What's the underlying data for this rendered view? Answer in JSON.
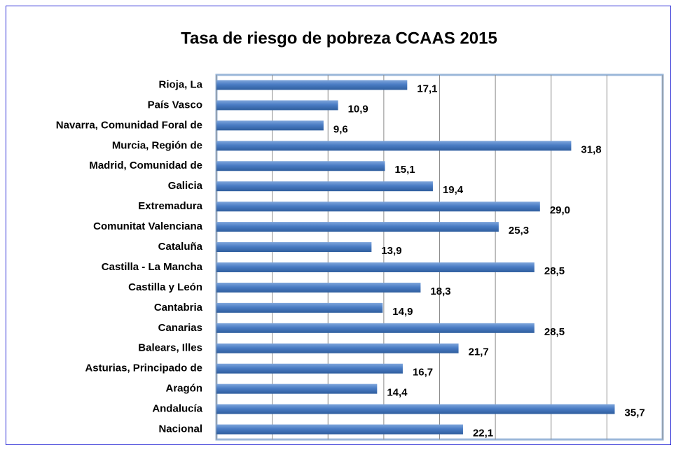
{
  "chart_data": {
    "type": "bar",
    "orientation": "horizontal",
    "title": "Tasa de riesgo de pobreza CCAAS 2015",
    "categories": [
      "Rioja, La",
      "País Vasco",
      "Navarra, Comunidad Foral de",
      "Murcia, Región de",
      "Madrid, Comunidad de",
      "Galicia",
      "Extremadura",
      "Comunitat Valenciana",
      "Cataluña",
      "Castilla - La Mancha",
      "Castilla y León",
      "Cantabria",
      "Canarias",
      "Balears, Illes",
      "Asturias, Principado de",
      "Aragón",
      "Andalucía",
      "Nacional"
    ],
    "values": [
      17.1,
      10.9,
      9.6,
      31.8,
      15.1,
      19.4,
      29.0,
      25.3,
      13.9,
      28.5,
      18.3,
      14.9,
      28.5,
      21.7,
      16.7,
      14.4,
      35.7,
      22.1
    ],
    "value_labels": [
      "17,1",
      "10,9",
      "9,6",
      "31,8",
      "15,1",
      "19,4",
      "29,0",
      "25,3",
      "13,9",
      "28,5",
      "18,3",
      "14,9",
      "28,5",
      "21,7",
      "16,7",
      "14,4",
      "35,7",
      "22,1"
    ],
    "color": "#4a7cc4",
    "xlim": [
      0,
      40
    ],
    "xticks": [
      0,
      5,
      10,
      15,
      20,
      25,
      30,
      35,
      40
    ],
    "grid": true
  }
}
